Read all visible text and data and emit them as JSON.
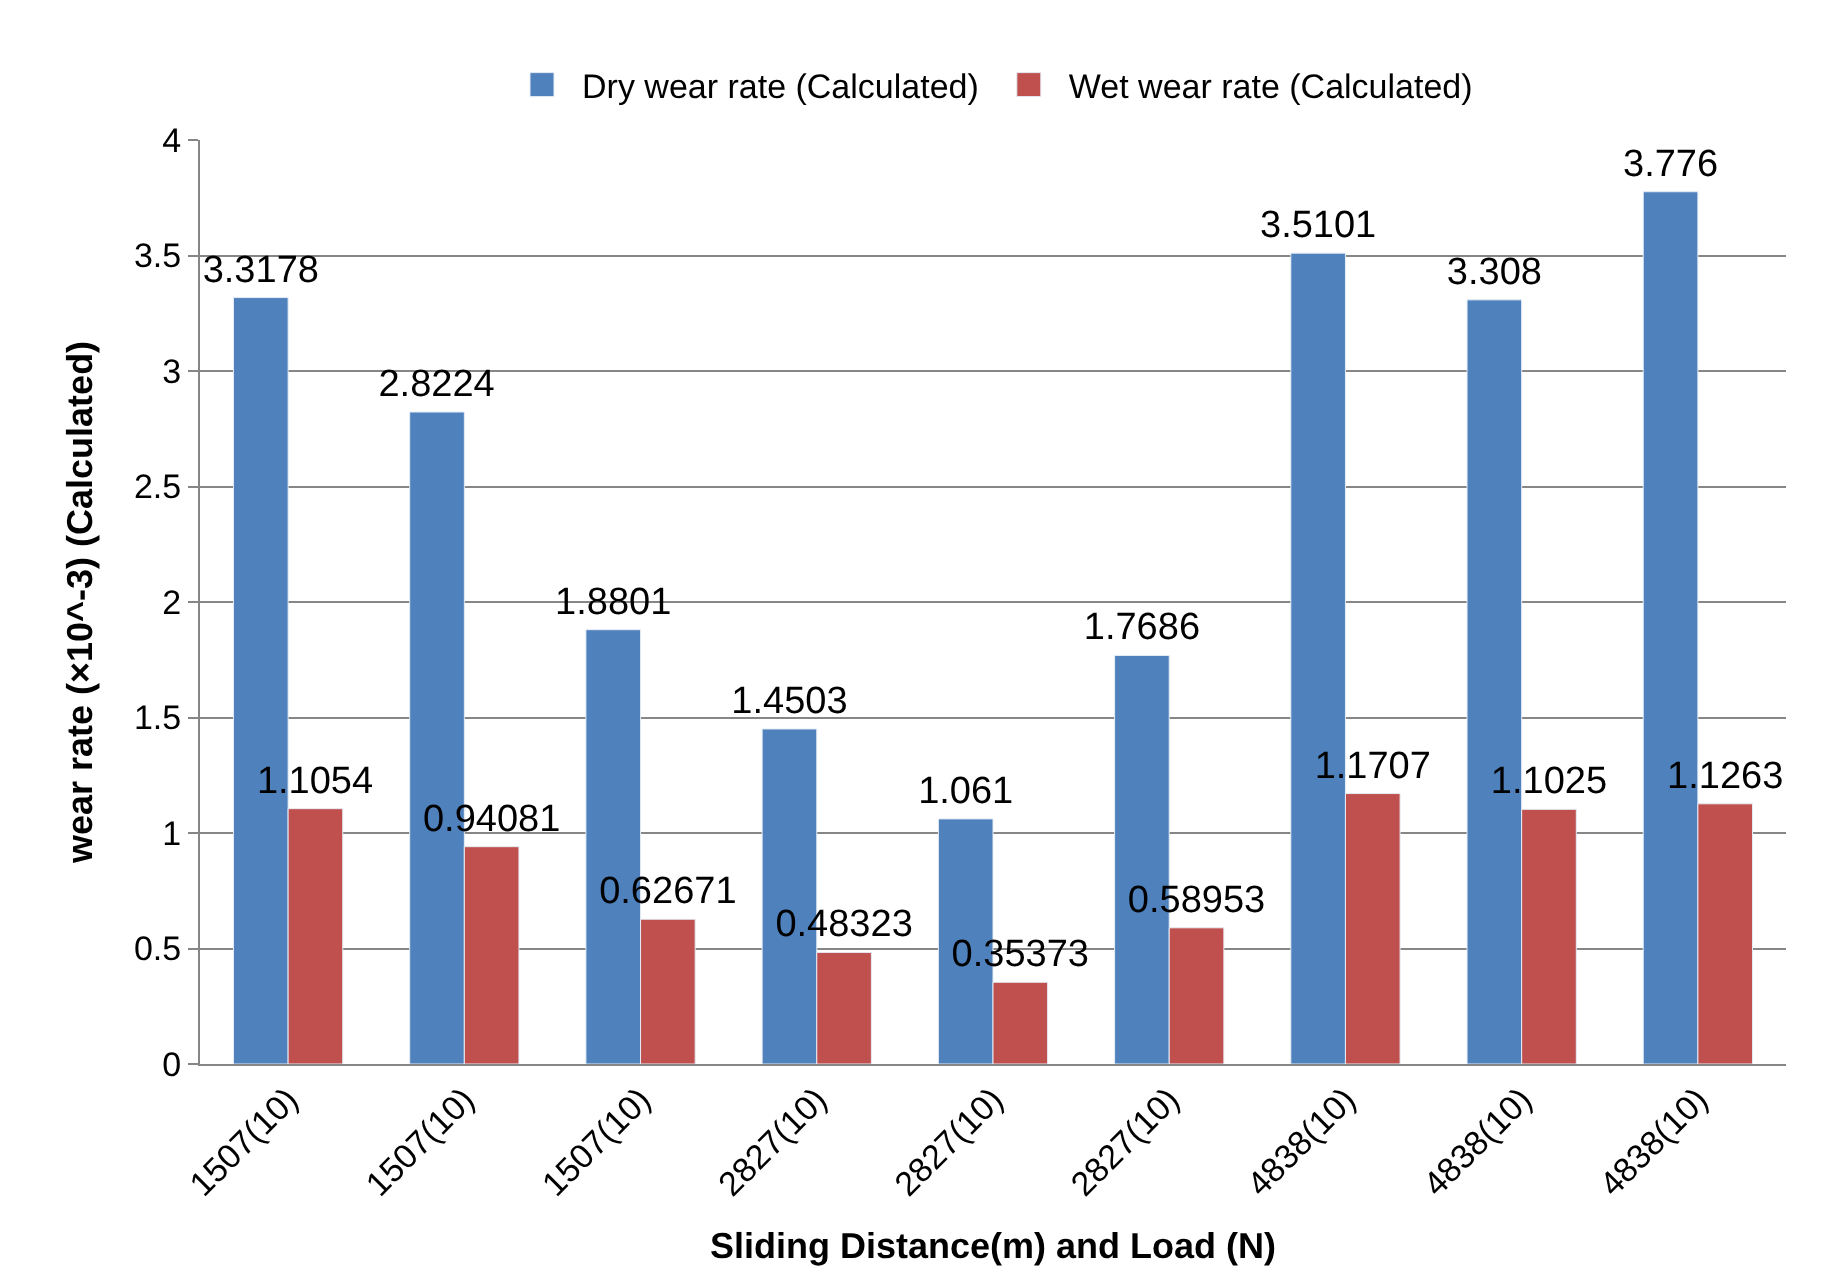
{
  "chart_data": {
    "type": "bar",
    "xlabel": "Sliding Distance(m) and Load (N)",
    "ylabel": "wear rate (×10^-3) (Calculated)",
    "categories": [
      "1507(10)",
      "1507(10)",
      "1507(10)",
      "2827(10)",
      "2827(10)",
      "2827(10)",
      "4838(10)",
      "4838(10)",
      "4838(10)"
    ],
    "series": [
      {
        "name": "Dry wear rate (Calculated)",
        "color": "#4f81bd",
        "values": [
          3.3178,
          2.8224,
          1.8801,
          1.4503,
          1.061,
          1.7686,
          3.5101,
          3.308,
          3.776
        ]
      },
      {
        "name": "Wet wear rate (Calculated)",
        "color": "#c0504d",
        "values": [
          1.1054,
          0.94081,
          0.62671,
          0.48323,
          0.35373,
          0.58953,
          1.1707,
          1.1025,
          1.1263
        ]
      }
    ],
    "ylim": [
      0,
      4
    ],
    "yticks": [
      0,
      0.5,
      1,
      1.5,
      2,
      2.5,
      3,
      3.5,
      4
    ],
    "grid": "y",
    "legend": "top",
    "data_labels": true
  }
}
